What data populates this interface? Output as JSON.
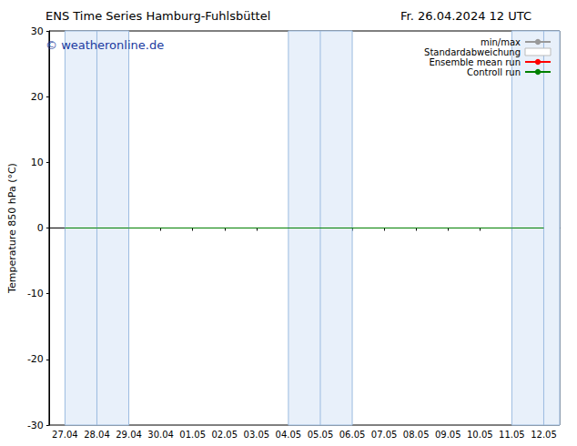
{
  "chart_data": {
    "type": "line",
    "title": "ENS Time Series Hamburg-Fuhlsbüttel",
    "subtitle": "Fr. 26.04.2024 12 UTC",
    "watermark": "© weatheronline.de",
    "y_label": "Temperature 850 hPa (°C)",
    "categories": [
      "27.04",
      "28.04",
      "29.04",
      "30.04",
      "01.05",
      "02.05",
      "03.05",
      "04.05",
      "05.05",
      "06.05",
      "07.05",
      "08.05",
      "09.05",
      "10.05",
      "11.05",
      "12.05"
    ],
    "series": [
      {
        "name": "min/max",
        "color": "#999999",
        "values": [
          null,
          null,
          null,
          null,
          null,
          null,
          null,
          null,
          null,
          null,
          null,
          null,
          null,
          null,
          null,
          null
        ]
      },
      {
        "name": "Standardabweichung",
        "color": "#bbbbbb",
        "values": [
          null,
          null,
          null,
          null,
          null,
          null,
          null,
          null,
          null,
          null,
          null,
          null,
          null,
          null,
          null,
          null
        ]
      },
      {
        "name": "Ensemble mean run",
        "color": "#ff0000",
        "values": [
          null,
          null,
          null,
          null,
          null,
          null,
          null,
          null,
          null,
          null,
          null,
          null,
          null,
          null,
          null,
          null
        ]
      },
      {
        "name": "Controll run",
        "color": "#008000",
        "values": [
          0,
          0,
          0,
          0,
          0,
          0,
          0,
          0,
          0,
          0,
          0,
          0,
          0,
          0,
          0,
          0
        ]
      }
    ],
    "ylim": [
      -30,
      30
    ],
    "yticks": [
      -30,
      -20,
      -10,
      0,
      10,
      20,
      30
    ],
    "grid": false,
    "legend": "upper right"
  }
}
